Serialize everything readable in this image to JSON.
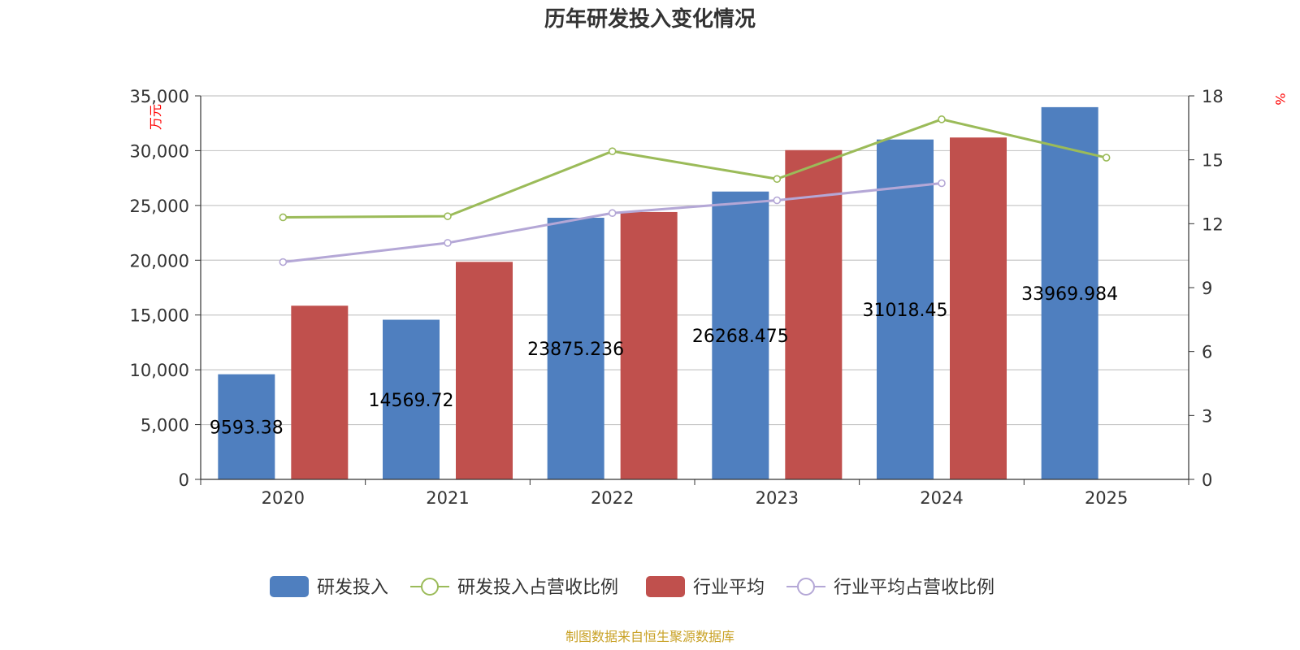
{
  "colors": {
    "rd_bar": "#4f7fbf",
    "ind_bar": "#c0504d",
    "rd_line": "#9bbb59",
    "ind_line": "#b4a7d6",
    "grid": "#c8c8c8",
    "axis": "#333333",
    "unit": "#ff0000",
    "source": "#c9a227"
  },
  "chart_data": {
    "type": "bar",
    "title": "历年研发投入变化情况",
    "categories": [
      "2020",
      "2021",
      "2022",
      "2023",
      "2024",
      "2025"
    ],
    "left_axis": {
      "unit": "万元",
      "ylim": [
        0,
        35000
      ],
      "ticks": [
        0,
        5000,
        10000,
        15000,
        20000,
        25000,
        30000,
        35000
      ],
      "tick_labels": [
        "0",
        "5,000",
        "10,000",
        "15,000",
        "20,000",
        "25,000",
        "30,000",
        "35,000"
      ]
    },
    "right_axis": {
      "unit": "%",
      "ylim": [
        0,
        18
      ],
      "ticks": [
        0,
        3,
        6,
        9,
        12,
        15,
        18
      ],
      "tick_labels": [
        "0",
        "3",
        "6",
        "9",
        "12",
        "15",
        "18"
      ]
    },
    "series": [
      {
        "name": "研发投入",
        "type": "bar",
        "axis": "left",
        "values": [
          9593.38,
          14569.72,
          23875.236,
          26268.475,
          31018.45,
          33969.984
        ],
        "labels": [
          "9593.38",
          "14569.72",
          "23875.236",
          "26268.475",
          "31018.45",
          "33969.984"
        ]
      },
      {
        "name": "研发投入占营收比例",
        "type": "line",
        "axis": "right",
        "values": [
          12.3,
          12.35,
          15.4,
          14.1,
          16.9,
          15.1
        ]
      },
      {
        "name": "行业平均",
        "type": "bar",
        "axis": "left",
        "values": [
          15850,
          19850,
          24400,
          30050,
          31200,
          null
        ]
      },
      {
        "name": "行业平均占营收比例",
        "type": "line",
        "axis": "right",
        "values": [
          10.2,
          11.1,
          12.5,
          13.1,
          13.9,
          null
        ]
      }
    ],
    "legend_position": "bottom",
    "source": "制图数据来自恒生聚源数据库"
  }
}
